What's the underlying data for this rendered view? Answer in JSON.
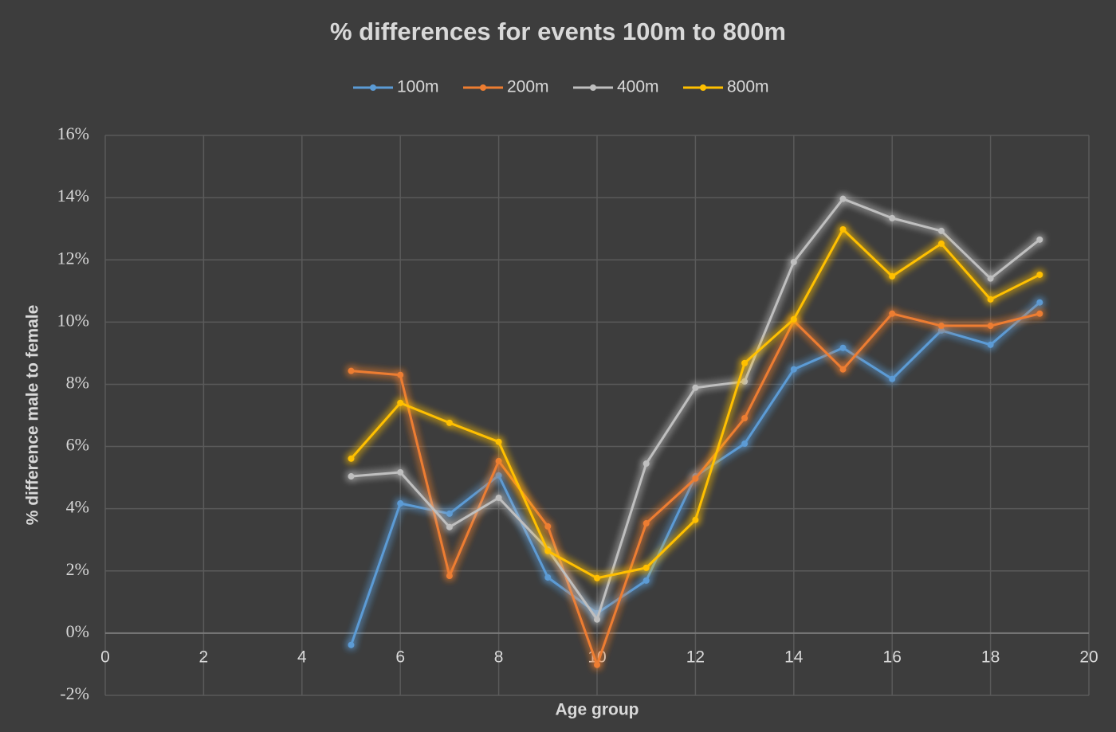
{
  "chart_data": {
    "type": "line",
    "title": "% differences for events 100m to 800m",
    "x_label": "Age group",
    "y_label": "% difference male to female",
    "x": [
      5,
      6,
      7,
      8,
      9,
      10,
      11,
      12,
      13,
      14,
      15,
      16,
      17,
      18,
      19
    ],
    "series": [
      {
        "name": "100m",
        "color": "#5b9bd5",
        "values": [
          -0.38,
          4.17,
          3.84,
          5.07,
          1.79,
          0.64,
          1.69,
          5.04,
          6.09,
          8.48,
          9.17,
          8.17,
          9.73,
          9.27,
          10.63
        ]
      },
      {
        "name": "200m",
        "color": "#ed7d31",
        "values": [
          8.43,
          8.3,
          1.84,
          5.53,
          3.43,
          -1.02,
          3.53,
          4.97,
          6.91,
          10.04,
          8.48,
          10.27,
          9.88,
          9.88,
          10.27
        ]
      },
      {
        "name": "400m",
        "color": "#bfbfbf",
        "values": [
          5.04,
          5.17,
          3.41,
          4.35,
          2.69,
          0.44,
          5.45,
          7.89,
          8.09,
          11.93,
          13.96,
          13.34,
          12.93,
          11.4,
          12.65
        ]
      },
      {
        "name": "800m",
        "color": "#ffc000",
        "values": [
          5.61,
          7.4,
          6.76,
          6.15,
          2.64,
          1.77,
          2.1,
          3.64,
          8.68,
          10.09,
          12.98,
          11.47,
          12.52,
          10.73,
          11.52
        ]
      }
    ],
    "xlim": [
      0,
      20
    ],
    "xticks": [
      0,
      2,
      4,
      6,
      8,
      10,
      12,
      14,
      16,
      18,
      20
    ],
    "ylim": [
      -2,
      16
    ],
    "yticks": [
      {
        "value": -2,
        "label": "-2%"
      },
      {
        "value": 0,
        "label": "0%"
      },
      {
        "value": 2,
        "label": "2%"
      },
      {
        "value": 4,
        "label": "4%"
      },
      {
        "value": 6,
        "label": "6%"
      },
      {
        "value": 8,
        "label": "8%"
      },
      {
        "value": 10,
        "label": "10%"
      },
      {
        "value": 12,
        "label": "12%"
      },
      {
        "value": 14,
        "label": "14%"
      },
      {
        "value": 16,
        "label": "16%"
      }
    ],
    "grid": true,
    "legend": "top"
  }
}
